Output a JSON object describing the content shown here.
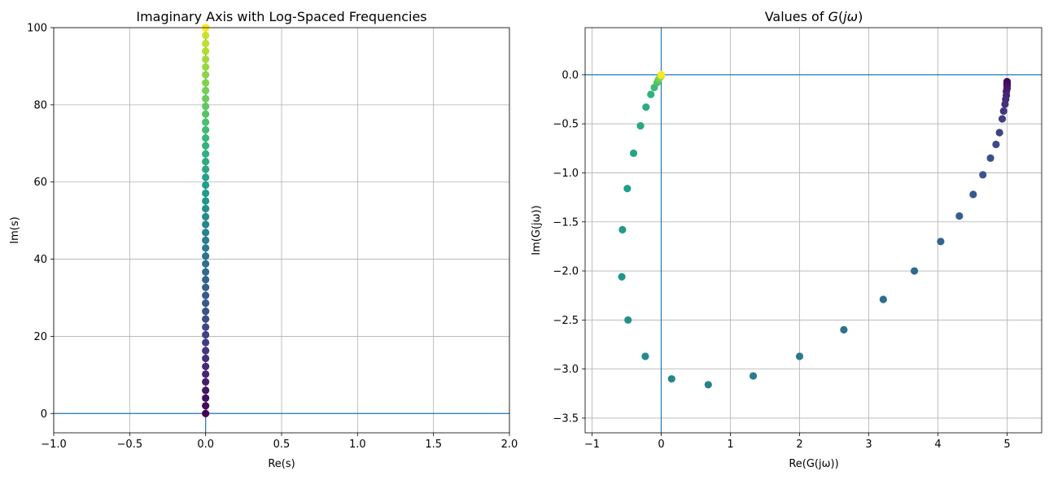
{
  "chart_data": [
    {
      "type": "scatter",
      "title": "Imaginary Axis with Log-Spaced Frequencies",
      "xlabel": "Re(s)",
      "ylabel": "Im(s)",
      "xlim": [
        -1.0,
        2.0
      ],
      "ylim": [
        -5,
        100
      ],
      "xticks": [
        -1.0,
        -0.5,
        0.0,
        0.5,
        1.0,
        1.5,
        2.0
      ],
      "xtick_labels": [
        "−1.0",
        "−0.5",
        "0.0",
        "0.5",
        "1.0",
        "1.5",
        "2.0"
      ],
      "yticks": [
        0,
        20,
        40,
        60,
        80,
        100
      ],
      "ytick_labels": [
        "0",
        "20",
        "40",
        "60",
        "80",
        "100"
      ],
      "grid": true,
      "colormap": "viridis",
      "reference_lines": {
        "x": 0,
        "y": 0,
        "color": "#1f77b4"
      },
      "points": {
        "x": [
          0,
          0,
          0,
          0,
          0,
          0,
          0,
          0,
          0,
          0,
          0,
          0,
          0,
          0,
          0,
          0,
          0,
          0,
          0,
          0,
          0,
          0,
          0,
          0,
          0,
          0,
          0,
          0,
          0,
          0,
          0,
          0,
          0,
          0,
          0,
          0,
          0,
          0,
          0,
          0,
          0,
          0,
          0,
          0,
          0,
          0,
          0,
          0,
          0,
          0,
          0,
          0,
          0
        ],
        "y": [
          0.0,
          2.0,
          4.0,
          6.0,
          8.2,
          10.2,
          12.2,
          14.3,
          16.3,
          18.4,
          20.4,
          22.4,
          24.5,
          26.5,
          28.6,
          30.6,
          32.7,
          34.7,
          36.7,
          38.8,
          40.8,
          42.9,
          44.9,
          46.9,
          49.0,
          51.0,
          53.1,
          55.1,
          57.1,
          59.2,
          61.2,
          63.3,
          65.3,
          67.3,
          69.4,
          71.4,
          73.5,
          75.5,
          77.6,
          79.6,
          81.6,
          83.7,
          85.7,
          87.8,
          89.8,
          91.8,
          93.9,
          95.9,
          98.0,
          100.0,
          100.0,
          100.0,
          100.0
        ]
      }
    },
    {
      "type": "scatter",
      "title": "Values of G(jω)",
      "title_parts": [
        "Values of ",
        "G",
        "(",
        "jω",
        ")"
      ],
      "xlabel": "Re(G(jω))",
      "ylabel": "Im(G(jω))",
      "xlim": [
        -1.1,
        5.5
      ],
      "ylim": [
        -3.65,
        0.48
      ],
      "xticks": [
        -1,
        0,
        1,
        2,
        3,
        4,
        5
      ],
      "xtick_labels": [
        "−1",
        "0",
        "1",
        "2",
        "3",
        "4",
        "5"
      ],
      "yticks": [
        0.0,
        -0.5,
        -1.0,
        -1.5,
        -2.0,
        -2.5,
        -3.0,
        -3.5
      ],
      "ytick_labels": [
        "0.0",
        "−0.5",
        "−1.0",
        "−1.5",
        "−2.0",
        "−2.5",
        "−3.0",
        "−3.5"
      ],
      "grid": true,
      "colormap": "viridis",
      "reference_lines": {
        "x": 0,
        "y": 0,
        "color": "#1f77b4"
      },
      "points": {
        "x": [
          5.0,
          5.0,
          5.0,
          5.0,
          4.99,
          4.99,
          4.98,
          4.97,
          4.95,
          4.93,
          4.89,
          4.84,
          4.76,
          4.65,
          4.51,
          4.31,
          4.04,
          3.66,
          3.21,
          2.64,
          2.0,
          1.33,
          0.68,
          0.15,
          -0.23,
          -0.48,
          -0.57,
          -0.56,
          -0.49,
          -0.4,
          -0.3,
          -0.22,
          -0.15,
          -0.1,
          -0.06,
          -0.04,
          -0.02,
          -0.01,
          0.0,
          0.0,
          0.0,
          0.0,
          0.0
        ],
        "y": [
          -0.07,
          -0.09,
          -0.11,
          -0.14,
          -0.17,
          -0.21,
          -0.25,
          -0.3,
          -0.37,
          -0.45,
          -0.59,
          -0.71,
          -0.85,
          -1.02,
          -1.22,
          -1.44,
          -1.7,
          -2.0,
          -2.29,
          -2.6,
          -2.87,
          -3.07,
          -3.16,
          -3.1,
          -2.87,
          -2.5,
          -2.06,
          -1.58,
          -1.16,
          -0.8,
          -0.52,
          -0.33,
          -0.2,
          -0.13,
          -0.08,
          -0.05,
          -0.03,
          -0.02,
          -0.01,
          0.0,
          0.0,
          0.0,
          0.0
        ],
        "color_index": [
          0.0,
          0.02,
          0.04,
          0.06,
          0.08,
          0.1,
          0.12,
          0.14,
          0.16,
          0.18,
          0.2,
          0.22,
          0.24,
          0.26,
          0.28,
          0.3,
          0.32,
          0.34,
          0.36,
          0.38,
          0.4,
          0.42,
          0.44,
          0.46,
          0.48,
          0.5,
          0.52,
          0.54,
          0.56,
          0.58,
          0.6,
          0.62,
          0.64,
          0.68,
          0.72,
          0.76,
          0.8,
          0.84,
          0.88,
          0.92,
          0.95,
          0.98,
          1.0
        ]
      }
    }
  ]
}
